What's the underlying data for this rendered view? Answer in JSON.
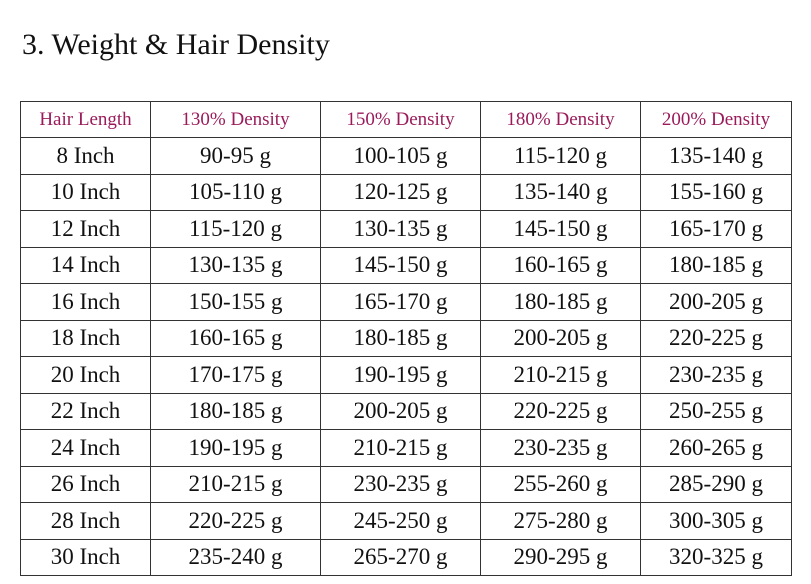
{
  "header": {
    "title": "3. Weight & Hair Density"
  },
  "table": {
    "columns": [
      "Hair Length",
      "130% Density",
      "150% Density",
      "180% Density",
      "200% Density"
    ],
    "rows": [
      [
        "8 Inch",
        "90-95 g",
        "100-105 g",
        "115-120 g",
        "135-140 g"
      ],
      [
        "10 Inch",
        "105-110 g",
        "120-125 g",
        "135-140 g",
        "155-160 g"
      ],
      [
        "12 Inch",
        "115-120 g",
        "130-135 g",
        "145-150 g",
        "165-170 g"
      ],
      [
        "14 Inch",
        "130-135 g",
        "145-150 g",
        "160-165 g",
        "180-185 g"
      ],
      [
        "16 Inch",
        "150-155 g",
        "165-170 g",
        "180-185 g",
        "200-205 g"
      ],
      [
        "18 Inch",
        "160-165 g",
        "180-185 g",
        "200-205 g",
        "220-225 g"
      ],
      [
        "20 Inch",
        "170-175 g",
        "190-195 g",
        "210-215 g",
        "230-235 g"
      ],
      [
        "22 Inch",
        "180-185 g",
        "200-205 g",
        "220-225 g",
        "250-255 g"
      ],
      [
        "24 Inch",
        "190-195 g",
        "210-215 g",
        "230-235 g",
        "260-265 g"
      ],
      [
        "26 Inch",
        "210-215 g",
        "230-235 g",
        "255-260 g",
        "285-290 g"
      ],
      [
        "28 Inch",
        "220-225 g",
        "245-250 g",
        "275-280 g",
        "300-305 g"
      ],
      [
        "30 Inch",
        "235-240 g",
        "265-270 g",
        "290-295 g",
        "320-325 g"
      ]
    ]
  }
}
